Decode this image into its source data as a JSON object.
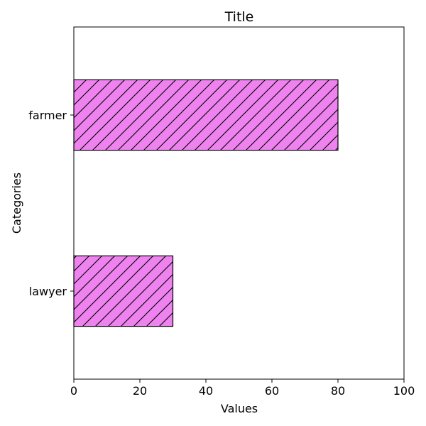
{
  "chart_data": {
    "type": "bar",
    "orientation": "horizontal",
    "title": "Title",
    "xlabel": "Values",
    "ylabel": "Categories",
    "categories": [
      "lawyer",
      "farmer"
    ],
    "values": [
      30,
      80
    ],
    "xlim": [
      0,
      100
    ],
    "xticks": [
      0,
      20,
      40,
      60,
      80,
      100
    ],
    "grid": false,
    "bar_color": "#ee82ee",
    "edge_color": "#000000",
    "hatch": "diagonal"
  }
}
